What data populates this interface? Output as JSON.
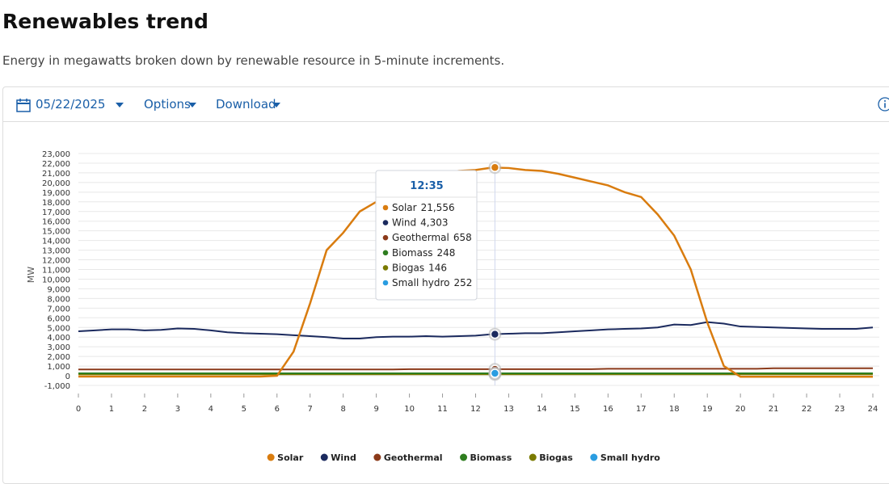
{
  "header": {
    "title": "Renewables trend",
    "subtitle": "Energy in megawatts broken down by renewable resource in 5-minute increments."
  },
  "toolbar": {
    "date": "05/22/2025",
    "options": "Options",
    "download": "Download"
  },
  "chart_data": {
    "type": "line",
    "y_label": "MW",
    "x": [
      0,
      0.5,
      1,
      1.5,
      2,
      2.5,
      3,
      3.5,
      4,
      4.5,
      5,
      5.5,
      6,
      6.5,
      7,
      7.5,
      8,
      8.5,
      9,
      9.5,
      10,
      10.5,
      11,
      11.5,
      12,
      12.5,
      13,
      13.5,
      14,
      14.5,
      15,
      15.5,
      16,
      16.5,
      17,
      17.5,
      18,
      18.5,
      19,
      19.5,
      20,
      20.5,
      21,
      21.5,
      22,
      22.5,
      23,
      23.5,
      24
    ],
    "xlim": [
      0,
      24
    ],
    "xticks": [
      0,
      1,
      2,
      3,
      4,
      5,
      6,
      7,
      8,
      9,
      10,
      11,
      12,
      13,
      14,
      15,
      16,
      17,
      18,
      19,
      20,
      21,
      22,
      23,
      24
    ],
    "ylim": [
      -1000,
      23000
    ],
    "yticks": [
      {
        "value": -1000,
        "label": "-1,000"
      },
      0,
      {
        "value": 1000,
        "label": "1,000"
      },
      {
        "value": 2000,
        "label": "2,000"
      },
      {
        "value": 3000,
        "label": "3,000"
      },
      {
        "value": 4000,
        "label": "4,000"
      },
      {
        "value": 5000,
        "label": "5,000"
      },
      {
        "value": 6000,
        "label": "6,000"
      },
      {
        "value": 7000,
        "label": "7,000"
      },
      {
        "value": 8000,
        "label": "8,000"
      },
      {
        "value": 9000,
        "label": "9,000"
      },
      {
        "value": 10000,
        "label": "10,000"
      },
      {
        "value": 11000,
        "label": "11,000"
      },
      {
        "value": 12000,
        "label": "12,000"
      },
      {
        "value": 13000,
        "label": "13,000"
      },
      {
        "value": 14000,
        "label": "14,000"
      },
      {
        "value": 15000,
        "label": "15,000"
      },
      {
        "value": 16000,
        "label": "16,000"
      },
      {
        "value": 17000,
        "label": "17,000"
      },
      {
        "value": 18000,
        "label": "18,000"
      },
      {
        "value": 19000,
        "label": "19,000"
      },
      {
        "value": 20000,
        "label": "20,000"
      },
      {
        "value": 21000,
        "label": "21,000"
      },
      {
        "value": 22000,
        "label": "22,000"
      },
      {
        "value": 23000,
        "label": "23,000"
      }
    ],
    "grid": true,
    "legend": "bottom",
    "series": [
      {
        "name": "Solar",
        "color": "#d97c0f",
        "values": [
          -80,
          -80,
          -80,
          -80,
          -80,
          -80,
          -80,
          -80,
          -80,
          -80,
          -80,
          -80,
          0,
          2500,
          7500,
          13000,
          14800,
          17000,
          18000,
          19500,
          20300,
          20800,
          21000,
          21200,
          21300,
          21550,
          21500,
          21300,
          21200,
          20900,
          20500,
          20100,
          19700,
          19000,
          18500,
          16700,
          14500,
          11000,
          5500,
          1000,
          -100,
          -100,
          -100,
          -100,
          -100,
          -100,
          -100,
          -100,
          -100
        ]
      },
      {
        "name": "Wind",
        "color": "#1b2a5e",
        "values": [
          4600,
          4700,
          4800,
          4800,
          4700,
          4750,
          4900,
          4850,
          4700,
          4500,
          4400,
          4350,
          4300,
          4200,
          4100,
          4000,
          3850,
          3850,
          4000,
          4050,
          4050,
          4100,
          4050,
          4100,
          4150,
          4300,
          4350,
          4400,
          4400,
          4500,
          4600,
          4700,
          4800,
          4850,
          4900,
          5000,
          5300,
          5250,
          5550,
          5400,
          5100,
          5050,
          5000,
          4950,
          4900,
          4850,
          4850,
          4850,
          5000
        ]
      },
      {
        "name": "Geothermal",
        "color": "#8b3a1a",
        "values": [
          650,
          650,
          650,
          650,
          650,
          650,
          650,
          650,
          650,
          650,
          650,
          650,
          650,
          650,
          650,
          650,
          650,
          650,
          650,
          650,
          680,
          680,
          680,
          680,
          680,
          680,
          680,
          680,
          680,
          680,
          680,
          680,
          720,
          720,
          720,
          720,
          720,
          720,
          720,
          720,
          720,
          720,
          780,
          780,
          780,
          780,
          780,
          780,
          780
        ]
      },
      {
        "name": "Biomass",
        "color": "#2e7d1f",
        "values": [
          250,
          250,
          250,
          250,
          250,
          250,
          250,
          250,
          250,
          250,
          250,
          250,
          250,
          250,
          250,
          250,
          250,
          250,
          250,
          250,
          250,
          250,
          250,
          250,
          250,
          250,
          250,
          250,
          250,
          250,
          250,
          250,
          250,
          250,
          250,
          250,
          250,
          250,
          250,
          250,
          250,
          250,
          250,
          250,
          250,
          250,
          250,
          250,
          250
        ]
      },
      {
        "name": "Biogas",
        "color": "#7a7a00",
        "values": [
          146,
          146,
          146,
          146,
          146,
          146,
          146,
          146,
          146,
          146,
          146,
          146,
          146,
          146,
          146,
          146,
          146,
          146,
          146,
          146,
          146,
          146,
          146,
          146,
          146,
          146,
          146,
          146,
          146,
          146,
          146,
          146,
          146,
          146,
          146,
          146,
          146,
          146,
          146,
          146,
          146,
          146,
          146,
          146,
          146,
          146,
          146,
          146,
          146
        ]
      },
      {
        "name": "Small hydro",
        "color": "#2a9de1",
        "values": [
          252,
          252,
          252,
          252,
          252,
          252,
          252,
          252,
          252,
          252,
          252,
          252,
          252,
          252,
          252,
          252,
          252,
          252,
          252,
          252,
          252,
          252,
          252,
          252,
          252,
          252,
          252,
          252,
          252,
          252,
          252,
          252,
          252,
          252,
          252,
          252,
          252,
          252,
          252,
          252,
          252,
          252,
          252,
          252,
          252,
          252,
          252,
          252,
          252
        ]
      }
    ],
    "tooltip": {
      "title": "12:35",
      "x": 12.583,
      "values": [
        21556,
        4303,
        658,
        248,
        146,
        252
      ],
      "value_labels": [
        "21,556",
        "4,303",
        "658",
        "248",
        "146",
        "252"
      ]
    }
  }
}
